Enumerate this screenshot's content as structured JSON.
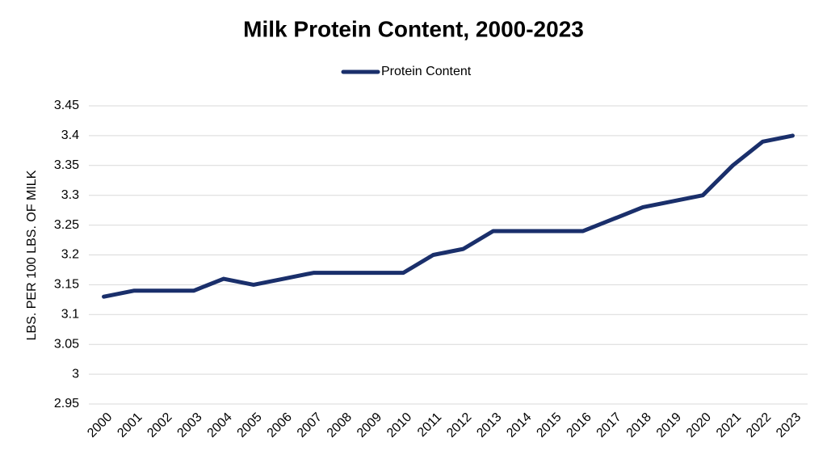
{
  "chart_data": {
    "type": "line",
    "title": "Milk Protein Content, 2000-2023",
    "y_label": "LBS. PER 100 LBS. OF MILK",
    "categories": [
      "2000",
      "2001",
      "2002",
      "2003",
      "2004",
      "2005",
      "2006",
      "2007",
      "2008",
      "2009",
      "2010",
      "2011",
      "2012",
      "2013",
      "2014",
      "2015",
      "2016",
      "2017",
      "2018",
      "2019",
      "2020",
      "2021",
      "2022",
      "2023"
    ],
    "series": [
      {
        "name": "Protein Content",
        "color": "#1a2f6b",
        "values": [
          3.13,
          3.14,
          3.14,
          3.14,
          3.16,
          3.15,
          3.16,
          3.17,
          3.17,
          3.17,
          3.17,
          3.2,
          3.21,
          3.24,
          3.24,
          3.24,
          3.24,
          3.26,
          3.28,
          3.29,
          3.3,
          3.35,
          3.39,
          3.4
        ]
      }
    ],
    "ylim": [
      2.95,
      3.45
    ],
    "yticks": [
      2.95,
      3,
      3.05,
      3.1,
      3.15,
      3.2,
      3.25,
      3.3,
      3.35,
      3.4,
      3.45
    ],
    "grid": true,
    "legend": "top"
  }
}
